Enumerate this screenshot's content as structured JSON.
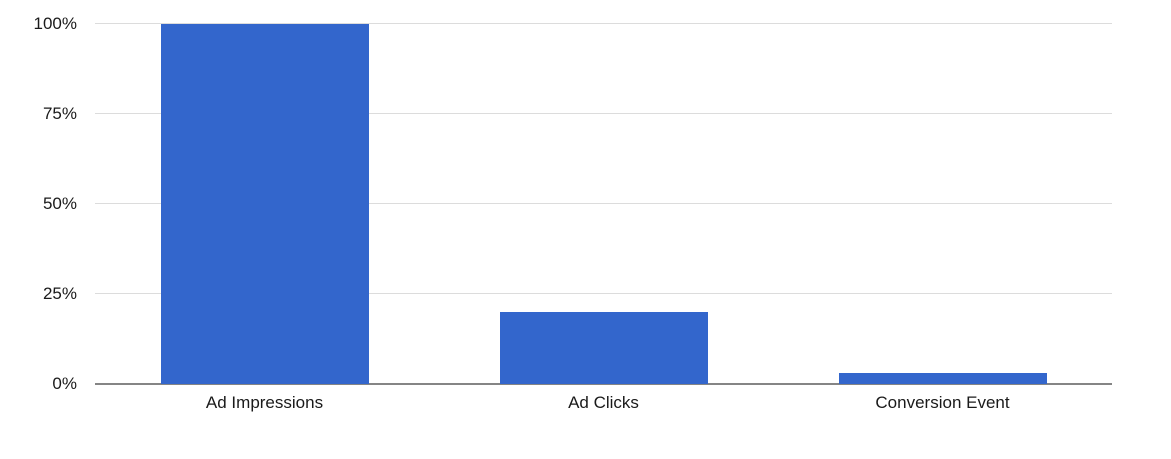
{
  "chart_data": {
    "type": "bar",
    "categories": [
      "Ad Impressions",
      "Ad Clicks",
      "Conversion Event"
    ],
    "values": [
      100,
      20,
      3
    ],
    "ylim": [
      0,
      100
    ],
    "yticks": [
      0,
      25,
      50,
      75,
      100
    ],
    "ytick_labels": [
      "0%",
      "25%",
      "50%",
      "75%",
      "100%"
    ],
    "grid": true,
    "legend": "none",
    "bar_color": "#3366cc",
    "gridline_color": "#dcdcdc",
    "baseline_color": "#858585",
    "text_color": "#1a1a1a"
  }
}
